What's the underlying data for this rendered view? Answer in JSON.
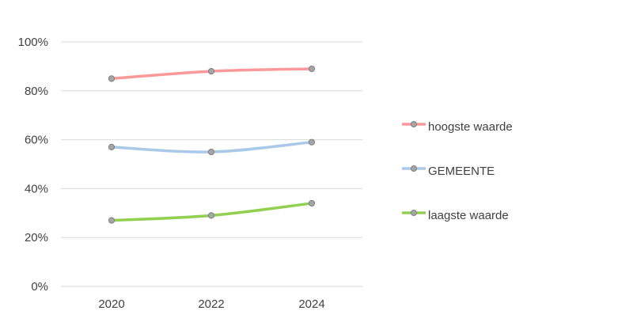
{
  "chart_data": {
    "type": "line",
    "title": "",
    "xlabel": "",
    "ylabel": "",
    "categories": [
      "2020",
      "2022",
      "2024"
    ],
    "y_ticks": [
      "0%",
      "20%",
      "40%",
      "60%",
      "80%",
      "100%"
    ],
    "ylim": [
      0,
      100
    ],
    "grid": true,
    "legend_position": "right",
    "series": [
      {
        "name": "hoogste waarde",
        "values": [
          85,
          88,
          89
        ],
        "color": "#ff9999"
      },
      {
        "name": "GEMEENTE",
        "values": [
          57,
          55,
          59
        ],
        "color": "#a9c9e9"
      },
      {
        "name": "laagste waarde",
        "values": [
          27,
          29,
          34
        ],
        "color": "#92d050"
      }
    ],
    "marker_color": "#a6a6a6"
  }
}
